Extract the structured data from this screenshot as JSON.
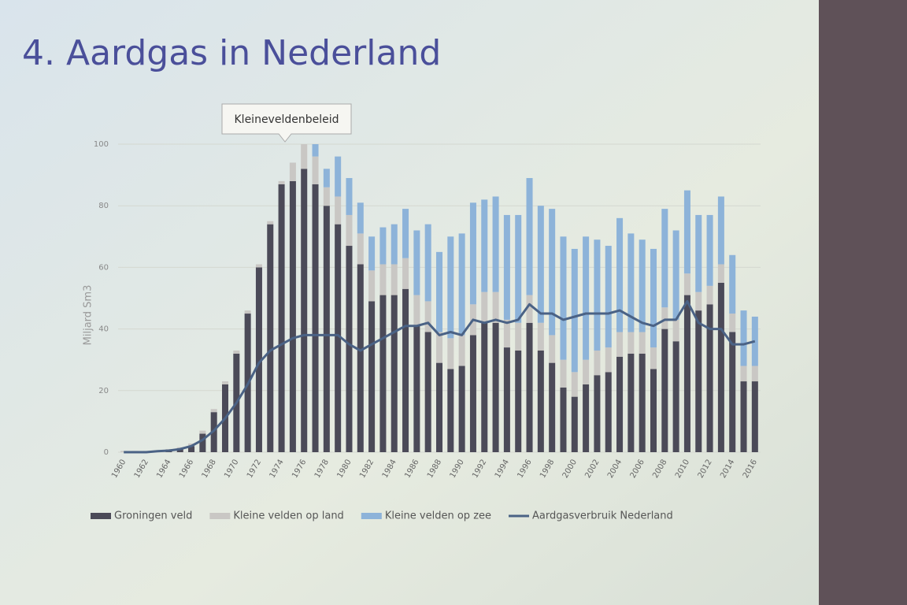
{
  "chart_data": {
    "type": "bar",
    "title": "4. Aardgas in Nederland",
    "annotation": "Kleineveldenbeleid",
    "y_label": "Miljard Sm3",
    "categories": [
      "1960",
      null,
      "1962",
      null,
      "1964",
      null,
      "1966",
      null,
      "1968",
      null,
      "1970",
      null,
      "1972",
      null,
      "1974",
      null,
      "1976",
      null,
      "1978",
      null,
      "1980",
      null,
      "1982",
      null,
      "1984",
      null,
      "1986",
      null,
      "1988",
      null,
      "1990",
      null,
      "1992",
      null,
      "1994",
      null,
      "1996",
      null,
      "1998",
      null,
      "2000",
      null,
      "2002",
      null,
      "2004",
      null,
      "2006",
      null,
      "2008",
      null,
      "2010",
      null,
      "2012",
      null,
      "2014",
      null,
      "2016"
    ],
    "ylim": [
      0,
      100
    ],
    "yticks": [
      0,
      20,
      40,
      60,
      80,
      100
    ],
    "grid": true,
    "legend": "bottom",
    "series": [
      {
        "name": "Groningen veld",
        "color": "#4b4a58",
        "values": [
          0,
          0,
          0,
          0.2,
          0.5,
          1,
          2,
          6,
          13,
          22,
          32,
          45,
          60,
          74,
          87,
          88,
          92,
          87,
          80,
          74,
          67,
          61,
          49,
          51,
          51,
          53,
          41,
          39,
          29,
          27,
          28,
          38,
          42,
          42,
          34,
          33,
          42,
          33,
          29,
          21,
          18,
          22,
          25,
          26,
          31,
          32,
          32,
          27,
          40,
          36,
          51,
          46,
          48,
          55,
          39,
          23,
          23
        ]
      },
      {
        "name": "Kleine velden op land",
        "color": "#c9c7c4",
        "values": [
          0.4,
          0.4,
          0.4,
          0.4,
          0.5,
          0.6,
          0.8,
          1,
          1,
          1,
          1,
          1,
          1,
          1,
          1,
          6,
          8,
          9,
          6,
          9,
          10,
          10,
          10,
          10,
          10,
          10,
          10,
          10,
          10,
          10,
          10,
          10,
          10,
          10,
          9,
          9,
          9,
          9,
          9,
          9,
          8,
          8,
          8,
          8,
          8,
          7,
          7,
          7,
          7,
          7,
          7,
          6,
          6,
          6,
          6,
          5,
          5
        ]
      },
      {
        "name": "Kleine velden op zee",
        "color": "#8db3d9",
        "values": [
          0,
          0,
          0,
          0,
          0,
          0,
          0,
          0,
          0,
          0,
          0,
          0,
          0,
          0,
          0,
          0,
          0,
          4,
          6,
          13,
          12,
          10,
          11,
          12,
          13,
          16,
          21,
          25,
          26,
          33,
          33,
          33,
          30,
          31,
          34,
          35,
          38,
          38,
          41,
          40,
          40,
          40,
          36,
          33,
          37,
          32,
          30,
          32,
          32,
          29,
          27,
          25,
          23,
          22,
          19,
          18,
          16
        ]
      },
      {
        "name": "Aardgasverbruik Nederland",
        "color": "#4a6285",
        "type": "line",
        "values": [
          0,
          0,
          0,
          0.3,
          0.5,
          1,
          2,
          4,
          7,
          11,
          16,
          22,
          29,
          33,
          35,
          37,
          38,
          38,
          38,
          38,
          35,
          33,
          35,
          37,
          39,
          41,
          41,
          42,
          38,
          39,
          38,
          43,
          42,
          43,
          42,
          43,
          48,
          45,
          45,
          43,
          44,
          45,
          45,
          45,
          46,
          44,
          42,
          41,
          43,
          43,
          49,
          42,
          40,
          40,
          35,
          35,
          36
        ]
      }
    ]
  }
}
